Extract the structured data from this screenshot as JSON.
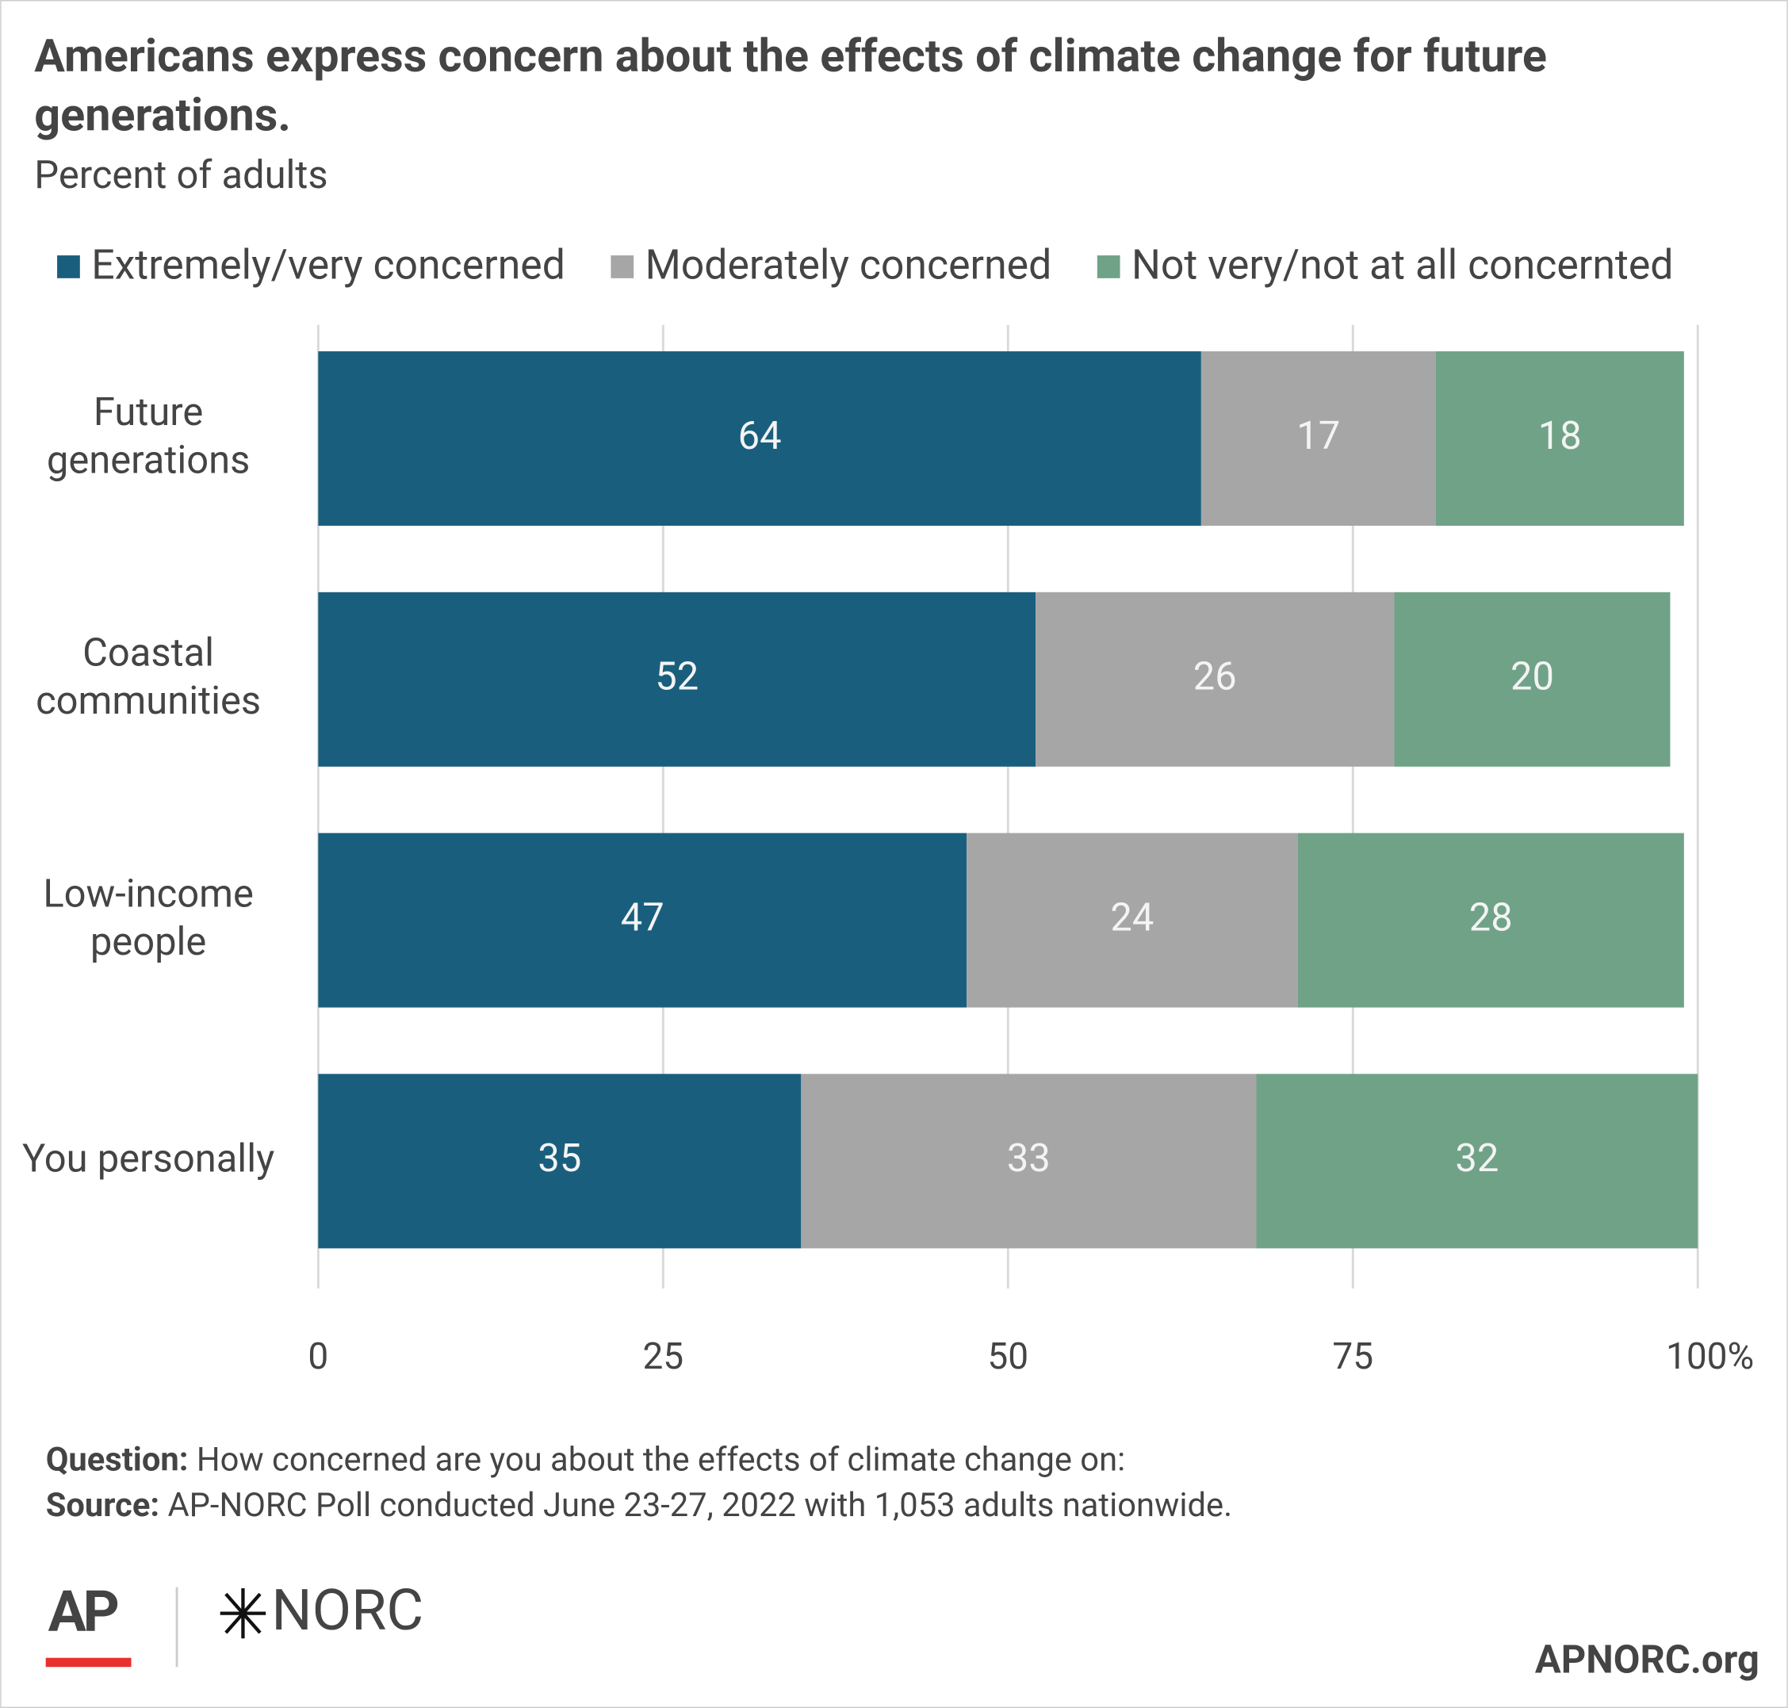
{
  "chart_data": {
    "type": "stacked-barh",
    "title": "Americans express concern about the effects of climate change for future generations.",
    "subtitle": "Percent of adults",
    "categories": [
      "Future\ngenerations",
      "Coastal\ncommunities",
      "Low-income\npeople",
      "You personally"
    ],
    "series": [
      {
        "name": "Extremely/very concerned",
        "color": "#1a5e7e",
        "values": [
          64,
          52,
          47,
          35
        ]
      },
      {
        "name": "Moderately concerned",
        "color": "#a6a6a6",
        "values": [
          17,
          26,
          24,
          33
        ]
      },
      {
        "name": "Not very/not at all concernted",
        "color": "#70a287",
        "values": [
          18,
          20,
          28,
          32
        ]
      }
    ],
    "xlim": [
      0,
      100
    ],
    "xticks": [
      0,
      25,
      50,
      75,
      {
        "value": 100,
        "label": "100%"
      }
    ],
    "grid": true,
    "legend": "top",
    "note_question_label": "Question:",
    "note_question": "How concerned are you about the effects of climate change on:",
    "note_source_label": "Source:",
    "note_source": "AP-NORC Poll conducted June 23-27, 2022 with 1,053 adults nationwide.",
    "logo_ap": "AP",
    "logo_norc": "NORC",
    "website": "APNORC.org"
  }
}
